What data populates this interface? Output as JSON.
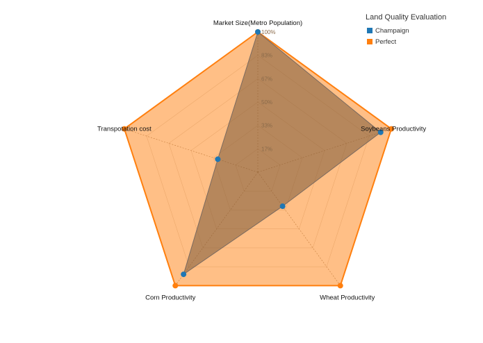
{
  "chart_data": {
    "type": "radar",
    "axes": [
      "Market Size(Metro Population)",
      "Soybeans Productivity",
      "Wheat Productivity",
      "Corn Productivity",
      "Transpotation cost"
    ],
    "ticks": [
      "17%",
      "33%",
      "50%",
      "67%",
      "83%",
      "100%"
    ],
    "range": [
      0,
      100
    ],
    "legend_title": "Land Quality Evaluation",
    "legend_position": "top-right",
    "series": [
      {
        "name": "Perfect",
        "values": [
          100,
          100,
          100,
          100,
          100
        ],
        "color": "#ff7f0e"
      },
      {
        "name": "Champaign",
        "values": [
          100,
          92,
          30,
          90,
          30
        ],
        "color": "#1f77b4"
      }
    ]
  }
}
